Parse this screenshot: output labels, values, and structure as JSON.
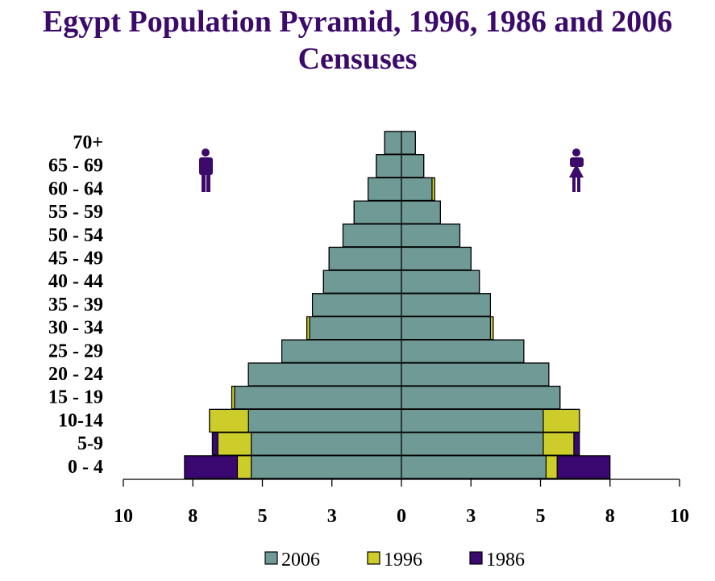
{
  "title_line1": "Egypt Population Pyramid, 1996, 1986 and 2006",
  "title_line2": "Censuses",
  "chart_data": {
    "type": "bar",
    "orientation": "horizontal-pyramid",
    "title": "Egypt Population Pyramid, 1996, 1986 and 2006 Censuses",
    "categories": [
      "0 - 4",
      "5-9",
      "10-14",
      "15 - 19",
      "20 - 24",
      "25 - 29",
      "30 - 34",
      "35 - 39",
      "40 - 44",
      "45 - 49",
      "50 - 54",
      "55 - 59",
      "60 - 64",
      "65 - 69",
      "70+"
    ],
    "x_tick_labels": [
      "10",
      "8",
      "5",
      "3",
      "0",
      "3",
      "5",
      "8",
      "10"
    ],
    "x_tick_values": [
      -10,
      -7.5,
      -5,
      -2.5,
      0,
      2.5,
      5,
      7.5,
      10
    ],
    "xlim": [
      -10,
      10
    ],
    "legend_position": "bottom",
    "side_icons": {
      "left": "male-icon",
      "right": "female-icon"
    },
    "colors": {
      "2006": "#6f9a96",
      "1996": "#cccc2a",
      "1986": "#3a0870",
      "icon": "#3b0a6b"
    },
    "series": [
      {
        "name": "2006",
        "male": [
          5.4,
          5.4,
          5.5,
          6.0,
          5.5,
          4.3,
          3.3,
          3.2,
          2.8,
          2.6,
          2.1,
          1.7,
          1.2,
          0.9,
          0.6
        ],
        "female": [
          5.2,
          5.1,
          5.1,
          5.7,
          5.3,
          4.4,
          3.2,
          3.2,
          2.8,
          2.5,
          2.1,
          1.4,
          1.1,
          0.8,
          0.5
        ]
      },
      {
        "name": "1996",
        "male": [
          5.9,
          6.6,
          6.9,
          6.1,
          5.5,
          4.3,
          3.4,
          3.2,
          2.8,
          2.6,
          2.1,
          1.7,
          1.2,
          0.9,
          0.6
        ],
        "female": [
          5.6,
          6.2,
          6.4,
          5.7,
          5.3,
          4.4,
          3.3,
          3.2,
          2.8,
          2.5,
          2.1,
          1.4,
          1.2,
          0.8,
          0.5
        ]
      },
      {
        "name": "1986",
        "male": [
          7.8,
          6.8,
          6.9,
          6.1,
          5.5,
          4.3,
          3.4,
          3.2,
          2.8,
          2.6,
          2.1,
          1.7,
          1.2,
          0.9,
          0.6
        ],
        "female": [
          7.5,
          6.4,
          6.4,
          5.7,
          5.3,
          4.4,
          3.3,
          3.2,
          2.8,
          2.5,
          2.1,
          1.4,
          1.2,
          0.8,
          0.5
        ]
      }
    ]
  }
}
